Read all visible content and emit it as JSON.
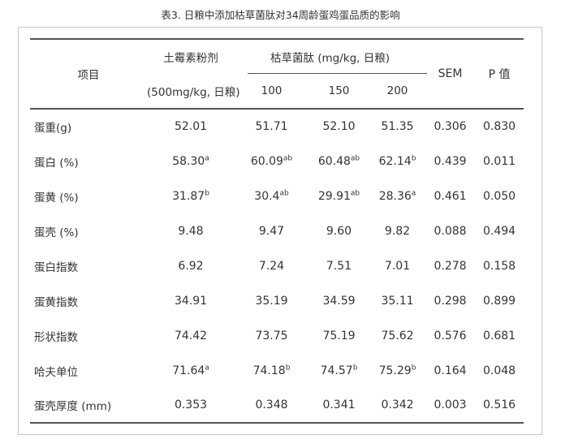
{
  "title": "表3. 日粮中添加枯草菌肽对34周龄蛋鸡蛋品质的影响",
  "table": {
    "header": {
      "item_label": "项目",
      "control_group_line1": "土霉素粉剂",
      "control_group_line2": "(500mg/kg, 日粮)",
      "treatment_group_label": "枯草菌肽 (mg/kg, 日粮)",
      "dose_levels": [
        "100",
        "150",
        "200"
      ],
      "sem_label": "SEM",
      "p_label": "P 值"
    },
    "rows": [
      {
        "item": "蛋重(g)",
        "values": [
          "52.01",
          "51.71",
          "52.10",
          "51.35",
          "0.306",
          "0.830"
        ]
      },
      {
        "item": "蛋白 (%)",
        "values": [
          "58.30^a",
          "60.09^ab",
          "60.48^ab",
          "62.14^b",
          "0.439",
          "0.011"
        ]
      },
      {
        "item": "蛋黄 (%)",
        "values": [
          "31.87^b",
          "30.4^ab",
          "29.91^ab",
          "28.36^a",
          "0.461",
          "0.050"
        ]
      },
      {
        "item": "蛋壳 (%)",
        "values": [
          "9.48",
          "9.47",
          "9.60",
          "9.82",
          "0.088",
          "0.494"
        ]
      },
      {
        "item": "蛋白指数",
        "values": [
          "6.92",
          "7.24",
          "7.51",
          "7.01",
          "0.278",
          "0.158"
        ]
      },
      {
        "item": "蛋黄指数",
        "values": [
          "34.91",
          "35.19",
          "34.59",
          "35.11",
          "0.298",
          "0.899"
        ]
      },
      {
        "item": "形状指数",
        "values": [
          "74.42",
          "73.75",
          "75.19",
          "75.62",
          "0.576",
          "0.681"
        ]
      },
      {
        "item": "哈夫单位",
        "values": [
          "71.64^a",
          "74.18^b",
          "74.57^b",
          "75.29^b",
          "0.164",
          "0.048"
        ]
      },
      {
        "item": "蛋壳厚度 (mm)",
        "values": [
          "0.353",
          "0.348",
          "0.341",
          "0.342",
          "0.003",
          "0.516"
        ]
      }
    ]
  }
}
